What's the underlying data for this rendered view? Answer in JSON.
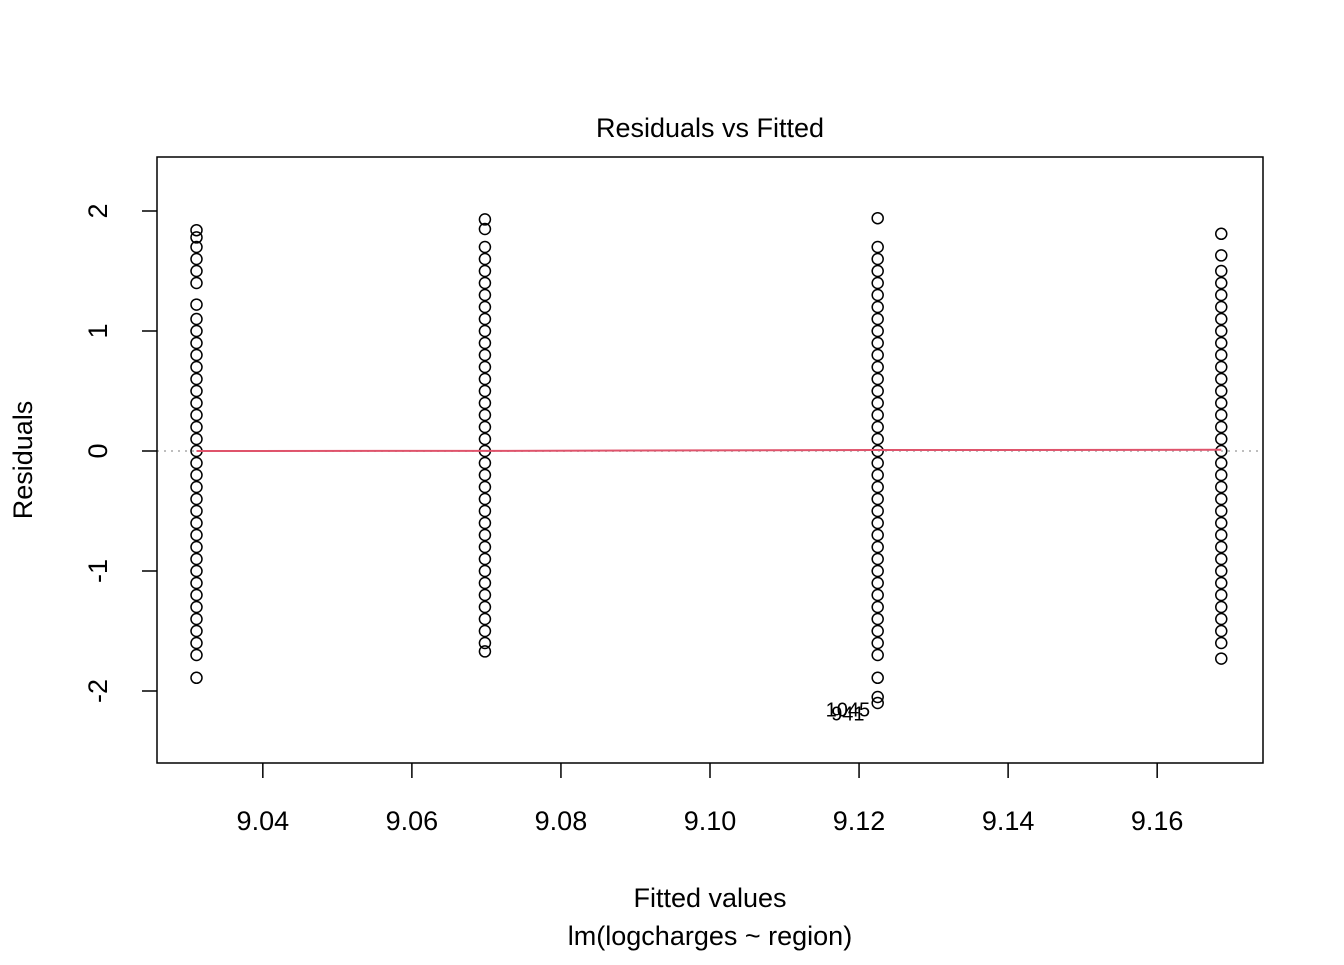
{
  "chart_data": {
    "type": "scatter",
    "title": "Residuals vs Fitted",
    "x_label": "Fitted values",
    "subtitle": "lm(logcharges ~ region)",
    "y_label": "Residuals",
    "xlim": [
      9.0258,
      9.1742
    ],
    "ylim": [
      -2.6,
      2.45
    ],
    "xticks": [
      9.04,
      9.06,
      9.08,
      {
        "value": 9.1,
        "label": "9.10"
      },
      9.12,
      9.14,
      9.16
    ],
    "yticks": [
      -2,
      -1,
      0,
      1,
      2
    ],
    "point_color": "#000000",
    "groups": [
      {
        "fitted": 9.0311,
        "residuals": [
          1.84,
          1.78,
          1.7,
          1.6,
          1.5,
          1.4,
          1.22,
          1.1,
          1.0,
          0.9,
          0.8,
          0.7,
          0.6,
          0.5,
          0.4,
          0.3,
          0.2,
          0.1,
          0,
          -0.1,
          -0.2,
          -0.3,
          -0.4,
          -0.5,
          -0.6,
          -0.7,
          -0.8,
          -0.9,
          -1.0,
          -1.1,
          -1.2,
          -1.3,
          -1.4,
          -1.5,
          -1.6,
          -1.7,
          -1.89
        ]
      },
      {
        "fitted": 9.0698,
        "residuals": [
          1.93,
          1.85,
          1.7,
          1.6,
          1.5,
          1.4,
          1.3,
          1.2,
          1.1,
          1.0,
          0.9,
          0.8,
          0.7,
          0.6,
          0.5,
          0.4,
          0.3,
          0.2,
          0.1,
          0,
          -0.1,
          -0.2,
          -0.3,
          -0.4,
          -0.5,
          -0.6,
          -0.7,
          -0.8,
          -0.9,
          -1.0,
          -1.1,
          -1.2,
          -1.3,
          -1.4,
          -1.5,
          -1.6,
          -1.67
        ]
      },
      {
        "fitted": 9.1225,
        "residuals": [
          1.94,
          1.7,
          1.6,
          1.5,
          1.4,
          1.3,
          1.2,
          1.1,
          1.0,
          0.9,
          0.8,
          0.7,
          0.6,
          0.5,
          0.4,
          0.3,
          0.2,
          0.1,
          0,
          -0.1,
          -0.2,
          -0.3,
          -0.4,
          -0.5,
          -0.6,
          -0.7,
          -0.8,
          -0.9,
          -1.0,
          -1.1,
          -1.2,
          -1.3,
          -1.4,
          -1.5,
          -1.6,
          -1.7,
          -1.89,
          -2.05,
          -2.1
        ]
      },
      {
        "fitted": 9.1686,
        "residuals": [
          1.81,
          1.63,
          1.5,
          1.4,
          1.3,
          1.2,
          1.1,
          1.0,
          0.9,
          0.8,
          0.7,
          0.6,
          0.5,
          0.4,
          0.3,
          0.2,
          0.1,
          0,
          -0.1,
          -0.2,
          -0.3,
          -0.4,
          -0.5,
          -0.6,
          -0.7,
          -0.8,
          -0.9,
          -1.0,
          -1.1,
          -1.2,
          -1.3,
          -1.4,
          -1.5,
          -1.6,
          -1.73
        ]
      }
    ],
    "smooth": {
      "color": "#df536b",
      "x": [
        9.0311,
        9.0698,
        9.1225,
        9.1686
      ],
      "y": [
        0,
        0.001,
        0.008,
        0.01
      ]
    },
    "reference_line": {
      "y": 0,
      "color": "#bebebe"
    },
    "point_labels": [
      {
        "text": "1045",
        "x": 9.1185,
        "y": -2.17
      },
      {
        "text": "941",
        "x": 9.1185,
        "y": -2.2
      }
    ]
  }
}
